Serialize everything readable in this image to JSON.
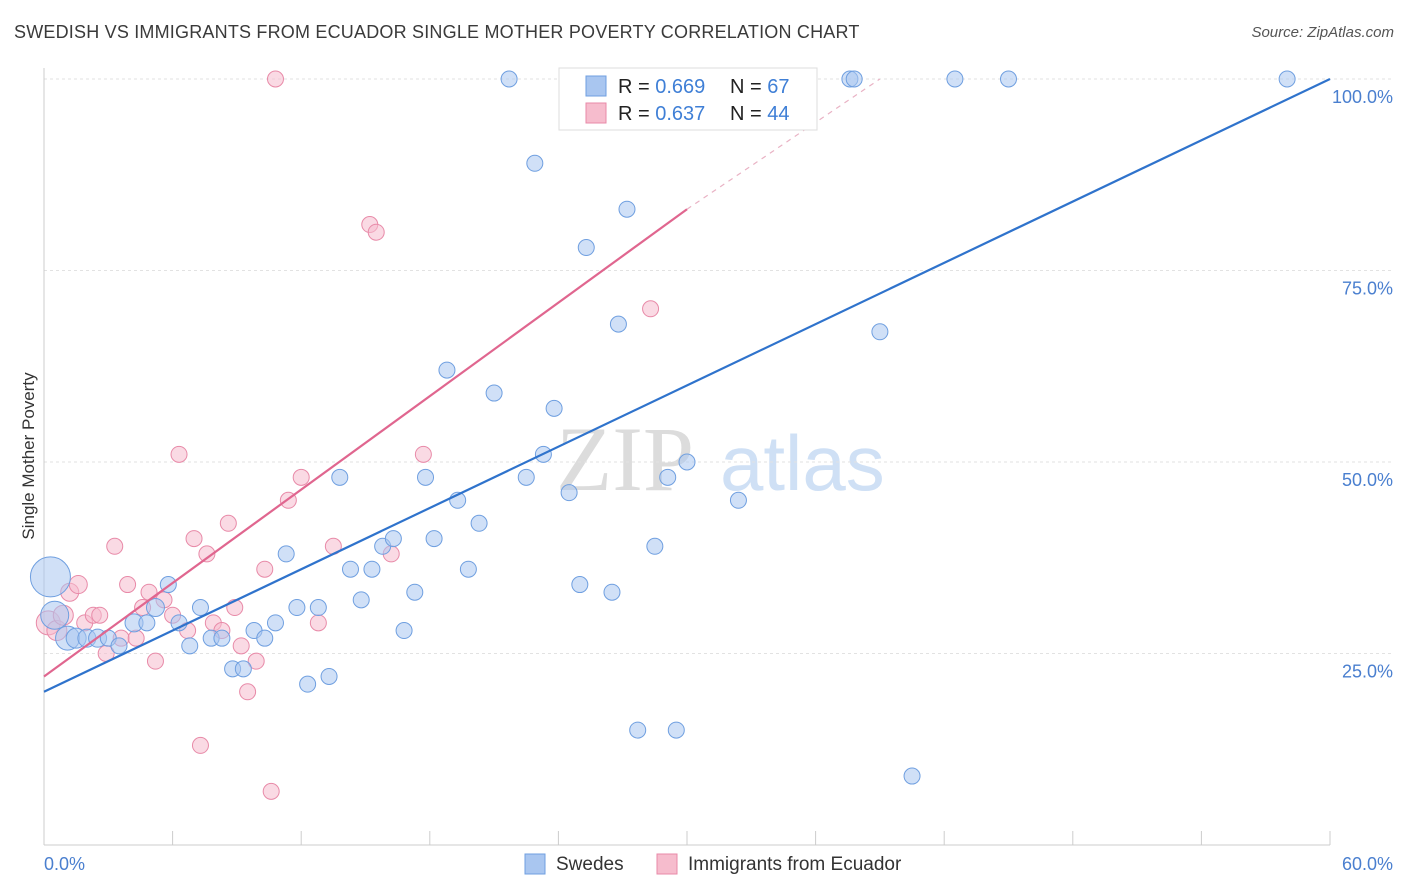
{
  "header": {
    "title": "SWEDISH VS IMMIGRANTS FROM ECUADOR SINGLE MOTHER POVERTY CORRELATION CHART",
    "source": "Source: ZipAtlas.com"
  },
  "watermark": {
    "part1": "ZIP",
    "part2": "atlas"
  },
  "colors": {
    "swedes_fill": "#a9c6f0",
    "swedes_stroke": "#6f9fe0",
    "swedes_line": "#2f73cc",
    "ecuador_fill": "#f6bccd",
    "ecuador_stroke": "#e88aa8",
    "ecuador_line": "#e0668f",
    "accent_text": "#3f7fd6"
  },
  "legend": {
    "rows": [
      {
        "r_label": "R = ",
        "r_value": "0.669",
        "n_label": "N = ",
        "n_value": "67"
      },
      {
        "r_label": "R = ",
        "r_value": "0.637",
        "n_label": "N = ",
        "n_value": "44"
      }
    ]
  },
  "chart_data": {
    "type": "scatter",
    "title": "SWEDISH VS IMMIGRANTS FROM ECUADOR SINGLE MOTHER POVERTY CORRELATION CHART",
    "xlabel": "",
    "ylabel": "Single Mother Poverty",
    "xlim": [
      0,
      60
    ],
    "ylim": [
      0,
      102
    ],
    "x_tick_labels": [
      "0.0%",
      "60.0%"
    ],
    "y_ticks": [
      25,
      50,
      75,
      100
    ],
    "y_tick_labels": [
      "25.0%",
      "50.0%",
      "75.0%",
      "100.0%"
    ],
    "grid": true,
    "legend_placement": "top-center",
    "series": [
      {
        "name": "Swedes",
        "r": 0.669,
        "n": 67,
        "trend": {
          "x0": 0,
          "y0": 20,
          "x1": 60,
          "y1": 100
        },
        "points": [
          [
            0.3,
            35,
            20
          ],
          [
            0.5,
            30,
            14
          ],
          [
            1.1,
            27,
            12
          ],
          [
            1.5,
            27,
            10
          ],
          [
            2.0,
            27,
            9
          ],
          [
            2.5,
            27,
            9
          ],
          [
            3.0,
            27,
            8
          ],
          [
            3.5,
            26,
            8
          ],
          [
            4.2,
            29,
            9
          ],
          [
            4.8,
            29,
            8
          ],
          [
            5.2,
            31,
            9
          ],
          [
            5.8,
            34,
            8
          ],
          [
            6.3,
            29,
            8
          ],
          [
            6.8,
            26,
            8
          ],
          [
            7.3,
            31,
            8
          ],
          [
            7.8,
            27,
            8
          ],
          [
            8.3,
            27,
            8
          ],
          [
            8.8,
            23,
            8
          ],
          [
            9.3,
            23,
            8
          ],
          [
            9.8,
            28,
            8
          ],
          [
            10.3,
            27,
            8
          ],
          [
            10.8,
            29,
            8
          ],
          [
            11.3,
            38,
            8
          ],
          [
            11.8,
            31,
            8
          ],
          [
            12.3,
            21,
            8
          ],
          [
            12.8,
            31,
            8
          ],
          [
            13.3,
            22,
            8
          ],
          [
            13.8,
            48,
            8
          ],
          [
            14.3,
            36,
            8
          ],
          [
            14.8,
            32,
            8
          ],
          [
            15.3,
            36,
            8
          ],
          [
            15.8,
            39,
            8
          ],
          [
            16.3,
            40,
            8
          ],
          [
            16.8,
            28,
            8
          ],
          [
            17.3,
            33,
            8
          ],
          [
            17.8,
            48,
            8
          ],
          [
            18.2,
            40,
            8
          ],
          [
            18.8,
            62,
            8
          ],
          [
            19.3,
            45,
            8
          ],
          [
            19.8,
            36,
            8
          ],
          [
            20.3,
            42,
            8
          ],
          [
            21.0,
            59,
            8
          ],
          [
            21.7,
            100,
            8
          ],
          [
            22.5,
            48,
            8
          ],
          [
            22.9,
            89,
            8
          ],
          [
            23.3,
            51,
            8
          ],
          [
            23.8,
            57,
            8
          ],
          [
            24.5,
            46,
            8
          ],
          [
            25.0,
            34,
            8
          ],
          [
            25.3,
            78,
            8
          ],
          [
            26.5,
            33,
            8
          ],
          [
            26.8,
            68,
            8
          ],
          [
            27.2,
            83,
            8
          ],
          [
            27.7,
            15,
            8
          ],
          [
            28.5,
            39,
            8
          ],
          [
            29.1,
            48,
            8
          ],
          [
            29.5,
            15,
            8
          ],
          [
            30.0,
            50,
            8
          ],
          [
            31.1,
            100,
            8
          ],
          [
            32.4,
            45,
            8
          ],
          [
            37.6,
            100,
            8
          ],
          [
            37.8,
            100,
            8
          ],
          [
            39.0,
            67,
            8
          ],
          [
            40.5,
            9,
            8
          ],
          [
            42.5,
            100,
            8
          ],
          [
            45.0,
            100,
            8
          ],
          [
            58.0,
            100,
            8
          ]
        ]
      },
      {
        "name": "Immigrants from Ecuador",
        "r": 0.637,
        "n": 44,
        "trend": {
          "x0": 0,
          "y0": 22,
          "x1": 30,
          "y1": 83,
          "dash_x1": 39,
          "dash_y1": 100
        },
        "points": [
          [
            0.2,
            29,
            12
          ],
          [
            0.6,
            28,
            10
          ],
          [
            0.9,
            30,
            10
          ],
          [
            1.2,
            33,
            9
          ],
          [
            1.6,
            34,
            9
          ],
          [
            1.9,
            29,
            8
          ],
          [
            2.3,
            30,
            8
          ],
          [
            2.6,
            30,
            8
          ],
          [
            2.9,
            25,
            8
          ],
          [
            3.3,
            39,
            8
          ],
          [
            3.6,
            27,
            8
          ],
          [
            3.9,
            34,
            8
          ],
          [
            4.3,
            27,
            8
          ],
          [
            4.6,
            31,
            8
          ],
          [
            4.9,
            33,
            8
          ],
          [
            5.2,
            24,
            8
          ],
          [
            5.6,
            32,
            8
          ],
          [
            6.0,
            30,
            8
          ],
          [
            6.3,
            51,
            8
          ],
          [
            6.7,
            28,
            8
          ],
          [
            7.0,
            40,
            8
          ],
          [
            7.3,
            13,
            8
          ],
          [
            7.6,
            38,
            8
          ],
          [
            7.9,
            29,
            8
          ],
          [
            8.3,
            28,
            8
          ],
          [
            8.6,
            42,
            8
          ],
          [
            8.9,
            31,
            8
          ],
          [
            9.2,
            26,
            8
          ],
          [
            9.5,
            20,
            8
          ],
          [
            9.9,
            24,
            8
          ],
          [
            10.3,
            36,
            8
          ],
          [
            10.6,
            7,
            8
          ],
          [
            10.8,
            100,
            8
          ],
          [
            11.4,
            45,
            8
          ],
          [
            12.0,
            48,
            8
          ],
          [
            12.8,
            29,
            8
          ],
          [
            13.5,
            39,
            8
          ],
          [
            15.2,
            81,
            8
          ],
          [
            15.5,
            80,
            8
          ],
          [
            16.2,
            38,
            8
          ],
          [
            17.7,
            51,
            8
          ],
          [
            28.3,
            70,
            8
          ],
          [
            30.5,
            100,
            8
          ],
          [
            31.0,
            100,
            8
          ]
        ]
      }
    ]
  },
  "bottom_legend": {
    "items": [
      {
        "label": "Swedes"
      },
      {
        "label": "Immigrants from Ecuador"
      }
    ]
  }
}
